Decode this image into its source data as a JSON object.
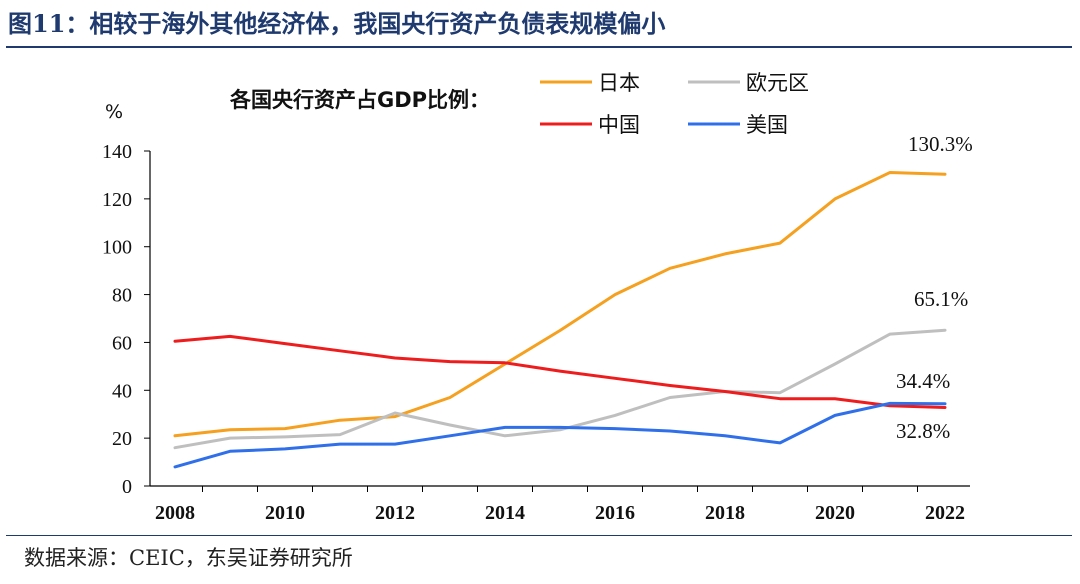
{
  "figure": {
    "title": "图11：相较于海外其他经济体，我国央行资产负债表规模偏小",
    "source": "数据来源：CEIC，东吴证券研究所"
  },
  "chart_data": {
    "type": "line",
    "subtitle": "各国央行资产占GDP比例：",
    "ylabel": "%",
    "xlabel": "",
    "ylim": [
      0,
      140
    ],
    "yticks": [
      0,
      20,
      40,
      60,
      80,
      100,
      120,
      140
    ],
    "xticks": [
      "2008",
      "2010",
      "2012",
      "2014",
      "2016",
      "2018",
      "2020",
      "2022"
    ],
    "x": [
      2008,
      2009,
      2010,
      2011,
      2012,
      2013,
      2014,
      2015,
      2016,
      2017,
      2018,
      2019,
      2020,
      2021,
      2022
    ],
    "grid": false,
    "legend_position": "top-right",
    "series": [
      {
        "name": "日本",
        "color": "#f5a01f",
        "values": [
          21,
          23.5,
          24,
          27.5,
          29,
          37,
          51,
          65,
          80,
          91,
          97,
          101.5,
          120,
          131,
          130.3
        ]
      },
      {
        "name": "欧元区",
        "color": "#bfbfbf",
        "values": [
          16,
          20,
          20.5,
          21.5,
          30.5,
          25.5,
          21,
          23.5,
          29.5,
          37,
          39.5,
          39,
          51,
          63.5,
          65.1
        ]
      },
      {
        "name": "中国",
        "color": "#ee1c1c",
        "values": [
          60.5,
          62.5,
          59.5,
          56.5,
          53.5,
          52,
          51.5,
          48,
          45,
          42,
          39.5,
          36.5,
          36.5,
          33.5,
          32.8
        ]
      },
      {
        "name": "美国",
        "color": "#2f6fea",
        "values": [
          8,
          14.5,
          15.5,
          17.5,
          17.5,
          21,
          24.5,
          24.5,
          24,
          23,
          21,
          18,
          29.5,
          34.5,
          34.4
        ]
      }
    ],
    "annotations": [
      "130.3%",
      "65.1%",
      "34.4%",
      "32.8%"
    ]
  }
}
